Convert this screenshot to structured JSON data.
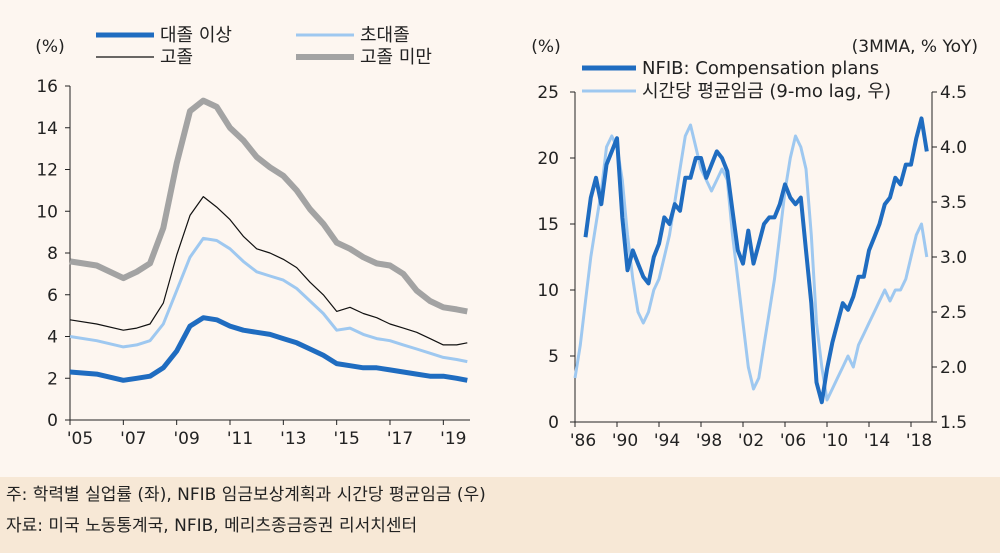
{
  "chart_data": [
    {
      "type": "line",
      "title": "학력별 실업률",
      "ylabel": "(%)",
      "ylim": [
        0,
        16
      ],
      "yticks": [
        "0",
        "2",
        "4",
        "6",
        "8",
        "10",
        "12",
        "14",
        "16"
      ],
      "xticks": [
        "'05",
        "'07",
        "'09",
        "'11",
        "'13",
        "'15",
        "'17",
        "'19"
      ],
      "x_start": 2005.0,
      "x_end": 2020.0,
      "series": [
        {
          "name": "대졸 이상",
          "color": "#1f6cc0",
          "x": [
            2005.0,
            2006.0,
            2007.0,
            2007.5,
            2008.0,
            2008.5,
            2009.0,
            2009.5,
            2010.0,
            2010.5,
            2011.0,
            2011.5,
            2012.0,
            2012.5,
            2013.0,
            2013.5,
            2014.0,
            2014.5,
            2015.0,
            2015.5,
            2016.0,
            2016.5,
            2017.0,
            2017.5,
            2018.0,
            2018.5,
            2019.0,
            2019.5,
            2019.9
          ],
          "values": [
            2.3,
            2.2,
            1.9,
            2.0,
            2.1,
            2.5,
            3.3,
            4.5,
            4.9,
            4.8,
            4.5,
            4.3,
            4.2,
            4.1,
            3.9,
            3.7,
            3.4,
            3.1,
            2.7,
            2.6,
            2.5,
            2.5,
            2.4,
            2.3,
            2.2,
            2.1,
            2.1,
            2.0,
            1.9
          ]
        },
        {
          "name": "초대졸",
          "color": "#9ec8f0",
          "x": [
            2005.0,
            2006.0,
            2007.0,
            2007.5,
            2008.0,
            2008.5,
            2009.0,
            2009.5,
            2010.0,
            2010.5,
            2011.0,
            2011.5,
            2012.0,
            2012.5,
            2013.0,
            2013.5,
            2014.0,
            2014.5,
            2015.0,
            2015.5,
            2016.0,
            2016.5,
            2017.0,
            2017.5,
            2018.0,
            2018.5,
            2019.0,
            2019.5,
            2019.9
          ],
          "values": [
            4.0,
            3.8,
            3.5,
            3.6,
            3.8,
            4.6,
            6.2,
            7.8,
            8.7,
            8.6,
            8.2,
            7.6,
            7.1,
            6.9,
            6.7,
            6.3,
            5.7,
            5.1,
            4.3,
            4.4,
            4.1,
            3.9,
            3.8,
            3.6,
            3.4,
            3.2,
            3.0,
            2.9,
            2.8
          ]
        },
        {
          "name": "고졸",
          "color": "#111111",
          "x": [
            2005.0,
            2006.0,
            2007.0,
            2007.5,
            2008.0,
            2008.5,
            2009.0,
            2009.5,
            2010.0,
            2010.5,
            2011.0,
            2011.5,
            2012.0,
            2012.5,
            2013.0,
            2013.5,
            2014.0,
            2014.5,
            2015.0,
            2015.5,
            2016.0,
            2016.5,
            2017.0,
            2017.5,
            2018.0,
            2018.5,
            2019.0,
            2019.5,
            2019.9
          ],
          "values": [
            4.8,
            4.6,
            4.3,
            4.4,
            4.6,
            5.6,
            7.9,
            9.8,
            10.7,
            10.2,
            9.6,
            8.8,
            8.2,
            8.0,
            7.7,
            7.3,
            6.6,
            6.0,
            5.2,
            5.4,
            5.1,
            4.9,
            4.6,
            4.4,
            4.2,
            3.9,
            3.6,
            3.6,
            3.7
          ]
        },
        {
          "name": "고졸 미만",
          "color": "#a3a3a3",
          "x": [
            2005.0,
            2006.0,
            2007.0,
            2007.5,
            2008.0,
            2008.5,
            2009.0,
            2009.5,
            2010.0,
            2010.5,
            2011.0,
            2011.5,
            2012.0,
            2012.5,
            2013.0,
            2013.5,
            2014.0,
            2014.5,
            2015.0,
            2015.5,
            2016.0,
            2016.5,
            2017.0,
            2017.5,
            2018.0,
            2018.5,
            2019.0,
            2019.5,
            2019.9
          ],
          "values": [
            7.6,
            7.4,
            6.8,
            7.1,
            7.5,
            9.2,
            12.3,
            14.8,
            15.3,
            15.0,
            14.0,
            13.4,
            12.6,
            12.1,
            11.7,
            11.0,
            10.1,
            9.4,
            8.5,
            8.2,
            7.8,
            7.5,
            7.4,
            7.0,
            6.2,
            5.7,
            5.4,
            5.3,
            5.2
          ]
        }
      ]
    },
    {
      "type": "line",
      "title": "NFIB 임금보상계획과 시간당 평균임금",
      "ylabel": "(%)",
      "ylabel_right": "(3MMA, % YoY)",
      "ylim": [
        0,
        25
      ],
      "ylim_right": [
        1.5,
        4.5
      ],
      "yticks": [
        "0",
        "5",
        "10",
        "15",
        "20",
        "25"
      ],
      "yticks_right": [
        "1.5",
        "2.0",
        "2.5",
        "3.0",
        "3.5",
        "4.0",
        "4.5"
      ],
      "xticks": [
        "'86",
        "'90",
        "'94",
        "'98",
        "'02",
        "'06",
        "'10",
        "'14",
        "'18"
      ],
      "x_start": 1986.0,
      "x_end": 2020.0,
      "series": [
        {
          "name": "NFIB: Compensation plans",
          "axis": "left",
          "color": "#1f6cc0",
          "x": [
            1987.0,
            1987.5,
            1988.0,
            1988.5,
            1989.0,
            1989.5,
            1990.0,
            1990.5,
            1991.0,
            1991.5,
            1992.0,
            1992.5,
            1993.0,
            1993.5,
            1994.0,
            1994.5,
            1995.0,
            1995.5,
            1996.0,
            1996.5,
            1997.0,
            1997.5,
            1998.0,
            1998.5,
            1999.0,
            1999.5,
            2000.0,
            2000.5,
            2001.0,
            2001.5,
            2002.0,
            2002.5,
            2003.0,
            2003.5,
            2004.0,
            2004.5,
            2005.0,
            2005.5,
            2006.0,
            2006.5,
            2007.0,
            2007.5,
            2008.0,
            2008.5,
            2009.0,
            2009.5,
            2010.0,
            2010.5,
            2011.0,
            2011.5,
            2012.0,
            2012.5,
            2013.0,
            2013.5,
            2014.0,
            2014.5,
            2015.0,
            2015.5,
            2016.0,
            2016.5,
            2017.0,
            2017.5,
            2018.0,
            2018.5,
            2019.0,
            2019.5
          ],
          "values": [
            14.0,
            17.0,
            18.5,
            16.5,
            19.5,
            20.5,
            21.5,
            15.5,
            11.5,
            13.0,
            12.0,
            11.0,
            10.5,
            12.5,
            13.5,
            15.5,
            15.0,
            16.5,
            16.0,
            18.5,
            18.5,
            20.0,
            20.0,
            18.5,
            19.5,
            20.5,
            20.0,
            19.0,
            16.0,
            13.0,
            12.0,
            14.5,
            12.0,
            13.5,
            15.0,
            15.5,
            15.5,
            16.5,
            18.0,
            17.0,
            16.5,
            17.0,
            13.0,
            9.0,
            3.0,
            1.5,
            4.0,
            6.0,
            7.5,
            9.0,
            8.5,
            9.5,
            11.0,
            11.0,
            13.0,
            14.0,
            15.0,
            16.5,
            17.0,
            18.5,
            18.0,
            19.5,
            19.5,
            21.5,
            23.0,
            20.5
          ]
        },
        {
          "name": "시간당 평균임금 (9-mo lag, 우)",
          "axis": "right",
          "color": "#9ec8f0",
          "x": [
            1986.0,
            1986.5,
            1987.0,
            1987.5,
            1988.0,
            1988.5,
            1989.0,
            1989.5,
            1990.0,
            1990.5,
            1991.0,
            1991.5,
            1992.0,
            1992.5,
            1993.0,
            1993.5,
            1994.0,
            1994.5,
            1995.0,
            1995.5,
            1996.0,
            1996.5,
            1997.0,
            1997.5,
            1998.0,
            1998.5,
            1999.0,
            1999.5,
            2000.0,
            2000.5,
            2001.0,
            2001.5,
            2002.0,
            2002.5,
            2003.0,
            2003.5,
            2004.0,
            2004.5,
            2005.0,
            2005.5,
            2006.0,
            2006.5,
            2007.0,
            2007.5,
            2008.0,
            2008.5,
            2009.0,
            2009.5,
            2010.0,
            2010.5,
            2011.0,
            2011.5,
            2012.0,
            2012.5,
            2013.0,
            2013.5,
            2014.0,
            2014.5,
            2015.0,
            2015.5,
            2016.0,
            2016.5,
            2017.0,
            2017.5,
            2018.0,
            2018.5,
            2019.0,
            2019.5
          ],
          "values": [
            1.9,
            2.2,
            2.6,
            3.0,
            3.3,
            3.6,
            4.0,
            4.1,
            4.0,
            3.7,
            3.2,
            2.8,
            2.5,
            2.4,
            2.5,
            2.7,
            2.8,
            3.0,
            3.2,
            3.5,
            3.8,
            4.1,
            4.2,
            4.0,
            3.8,
            3.7,
            3.6,
            3.7,
            3.8,
            3.7,
            3.2,
            2.8,
            2.4,
            2.0,
            1.8,
            1.9,
            2.2,
            2.5,
            2.8,
            3.2,
            3.6,
            3.9,
            4.1,
            4.0,
            3.8,
            3.2,
            2.4,
            2.0,
            1.7,
            1.8,
            1.9,
            2.0,
            2.1,
            2.0,
            2.2,
            2.3,
            2.4,
            2.5,
            2.6,
            2.7,
            2.6,
            2.7,
            2.7,
            2.8,
            3.0,
            3.2,
            3.3,
            3.0
          ]
        }
      ]
    }
  ],
  "footer": {
    "note": "주: 학력별 실업률 (좌), NFIB 임금보상계획과 시간당 평균임금 (우)",
    "source": "자료: 미국 노동통계국, NFIB, 메리츠종금증권 리서치센터"
  }
}
